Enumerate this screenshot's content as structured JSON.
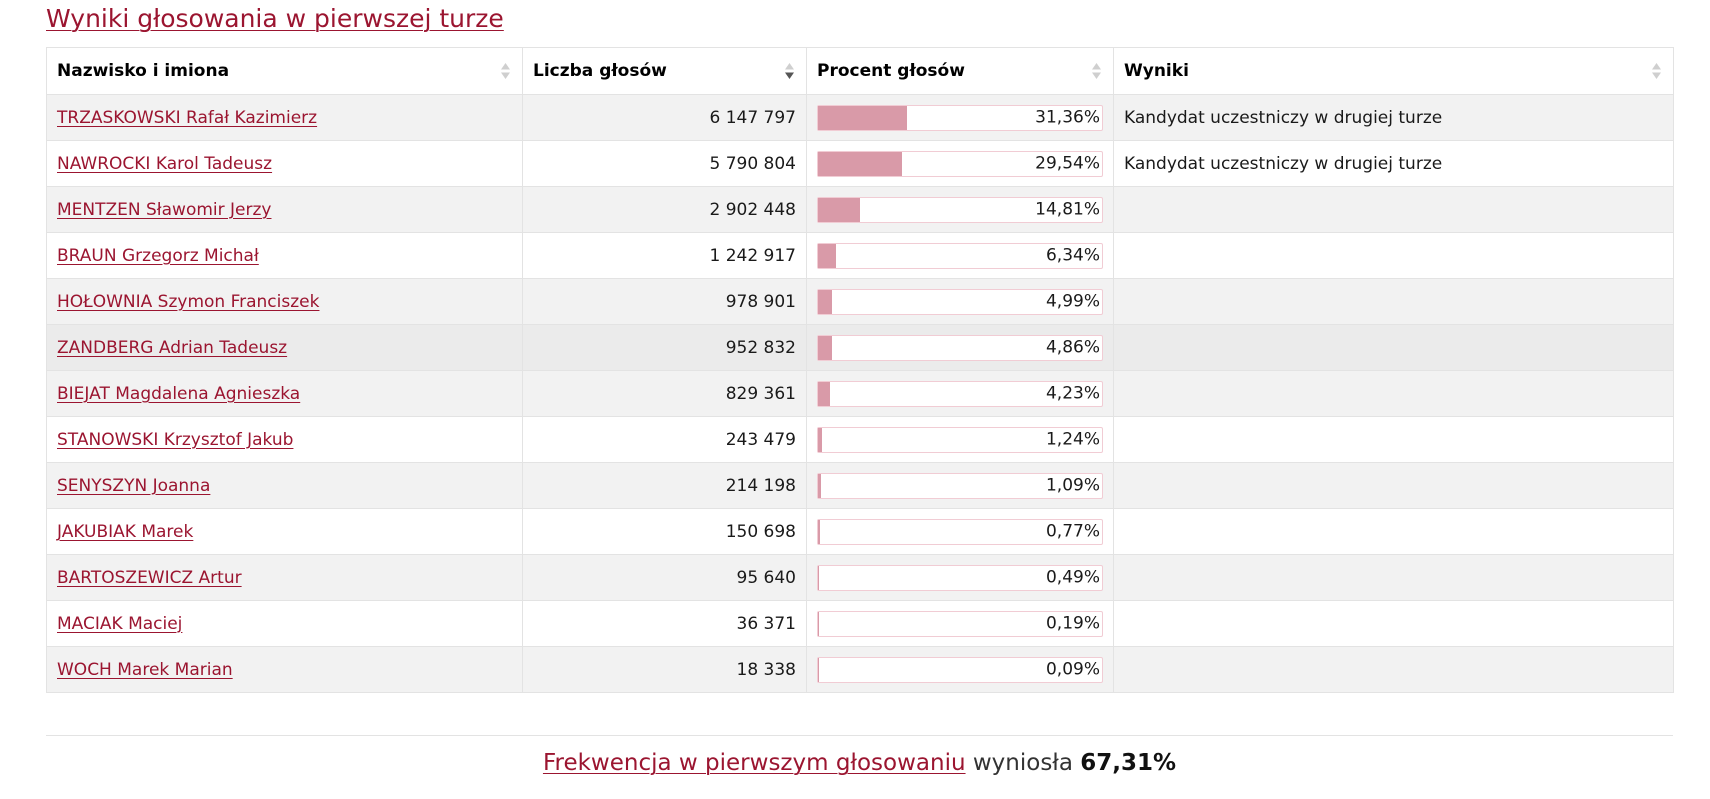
{
  "section_title": "Wyniki głosowania w pierwszej turze",
  "table": {
    "headers": [
      {
        "label": "Nazwisko i imiona",
        "sort": "none"
      },
      {
        "label": "Liczba głosów",
        "sort": "descending"
      },
      {
        "label": "Procent głosów",
        "sort": "none"
      },
      {
        "label": "Wyniki",
        "sort": "none"
      }
    ],
    "rows": [
      {
        "name": "TRZASKOWSKI Rafał Kazimierz",
        "votes": "6 147 797",
        "percent_label": "31,36%",
        "percent": 31.36,
        "result": "Kandydat uczestniczy w drugiej turze"
      },
      {
        "name": "NAWROCKI Karol Tadeusz",
        "votes": "5 790 804",
        "percent_label": "29,54%",
        "percent": 29.54,
        "result": "Kandydat uczestniczy w drugiej turze"
      },
      {
        "name": "MENTZEN Sławomir Jerzy",
        "votes": "2 902 448",
        "percent_label": "14,81%",
        "percent": 14.81,
        "result": ""
      },
      {
        "name": "BRAUN Grzegorz Michał",
        "votes": "1 242 917",
        "percent_label": "6,34%",
        "percent": 6.34,
        "result": ""
      },
      {
        "name": "HOŁOWNIA Szymon Franciszek",
        "votes": "978 901",
        "percent_label": "4,99%",
        "percent": 4.99,
        "result": ""
      },
      {
        "name": "ZANDBERG Adrian Tadeusz",
        "votes": "952 832",
        "percent_label": "4,86%",
        "percent": 4.86,
        "result": ""
      },
      {
        "name": "BIEJAT Magdalena Agnieszka",
        "votes": "829 361",
        "percent_label": "4,23%",
        "percent": 4.23,
        "result": ""
      },
      {
        "name": "STANOWSKI Krzysztof Jakub",
        "votes": "243 479",
        "percent_label": "1,24%",
        "percent": 1.24,
        "result": ""
      },
      {
        "name": "SENYSZYN Joanna",
        "votes": "214 198",
        "percent_label": "1,09%",
        "percent": 1.09,
        "result": ""
      },
      {
        "name": "JAKUBIAK Marek",
        "votes": "150 698",
        "percent_label": "0,77%",
        "percent": 0.77,
        "result": ""
      },
      {
        "name": "BARTOSZEWICZ Artur",
        "votes": "95 640",
        "percent_label": "0,49%",
        "percent": 0.49,
        "result": ""
      },
      {
        "name": "MACIAK Maciej",
        "votes": "36 371",
        "percent_label": "0,19%",
        "percent": 0.19,
        "result": ""
      },
      {
        "name": "WOCH Marek Marian",
        "votes": "18 338",
        "percent_label": "0,09%",
        "percent": 0.09,
        "result": ""
      }
    ],
    "hovered_row": 5
  },
  "turnout": {
    "link_text": "Frekwencja w pierwszym głosowaniu",
    "middle_text": "wyniosła",
    "value": "67,31%"
  },
  "colors": {
    "accent": "#9b1530",
    "bar_fill": "#d99aa8",
    "bar_border": "#f1ccd4",
    "row_odd": "#f2f2f2",
    "row_hover": "#ebebeb"
  },
  "icons": {
    "sort_none": "sort-both-icon",
    "sort_descending": "sort-descending-icon"
  }
}
